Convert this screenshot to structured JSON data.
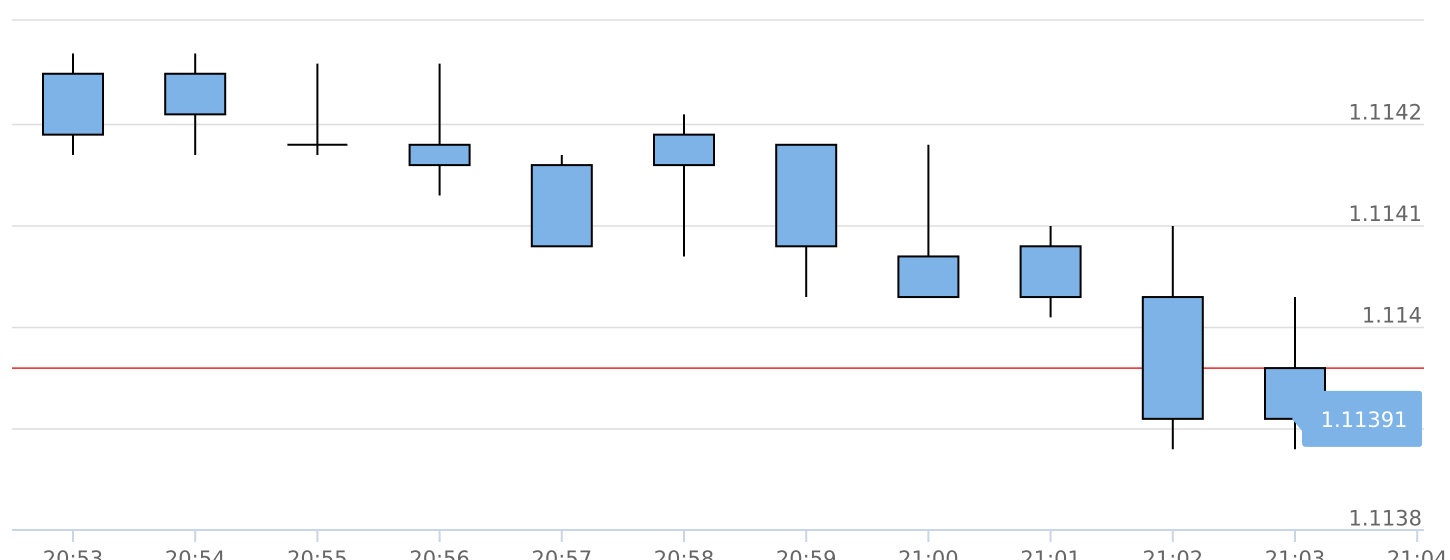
{
  "chart_data": {
    "type": "candlestick",
    "title": "",
    "xlabel": "",
    "ylabel": "",
    "x_ticks": [
      "20:53",
      "20:54",
      "20:55",
      "20:56",
      "20:57",
      "20:58",
      "20:59",
      "21:00",
      "21:01",
      "21:02",
      "21:03",
      "21:04"
    ],
    "y_ticks": [
      {
        "value": 1.1138,
        "label": "1.1138"
      },
      {
        "value": 1.114,
        "label": "1.114"
      },
      {
        "value": 1.1141,
        "label": "1.1141"
      },
      {
        "value": 1.1142,
        "label": "1.1142"
      }
    ],
    "y_range": [
      1.11378,
      1.11429
    ],
    "grid": true,
    "candles": [
      {
        "time": "20:53",
        "open": 1.11419,
        "high": 1.11427,
        "low": 1.11417,
        "close": 1.11425
      },
      {
        "time": "20:54",
        "open": 1.11421,
        "high": 1.11427,
        "low": 1.11417,
        "close": 1.11425
      },
      {
        "time": "20:55",
        "open": 1.11418,
        "high": 1.11426,
        "low": 1.11417,
        "close": 1.11418
      },
      {
        "time": "20:56",
        "open": 1.11416,
        "high": 1.11426,
        "low": 1.11413,
        "close": 1.11418
      },
      {
        "time": "20:57",
        "open": 1.11408,
        "high": 1.11417,
        "low": 1.11408,
        "close": 1.11416
      },
      {
        "time": "20:58",
        "open": 1.11416,
        "high": 1.11421,
        "low": 1.11407,
        "close": 1.11419
      },
      {
        "time": "20:59",
        "open": 1.11408,
        "high": 1.11418,
        "low": 1.11403,
        "close": 1.11418
      },
      {
        "time": "21:00",
        "open": 1.11403,
        "high": 1.11418,
        "low": 1.11403,
        "close": 1.11407
      },
      {
        "time": "21:01",
        "open": 1.11403,
        "high": 1.1141,
        "low": 1.11401,
        "close": 1.11408
      },
      {
        "time": "21:02",
        "open": 1.11391,
        "high": 1.1141,
        "low": 1.11388,
        "close": 1.11403
      },
      {
        "time": "21:03",
        "open": 1.11391,
        "high": 1.11403,
        "low": 1.11388,
        "close": 1.11396
      }
    ],
    "current_price": {
      "value": 1.11391,
      "label": "1.11391"
    },
    "reference_line": {
      "value": 1.11396,
      "color": "#e8262a"
    },
    "colors": {
      "filled_body": "#7eb3e8",
      "hollow_body": "#ffffff",
      "outline": "#000000",
      "grid": "#dddddd",
      "axis": "#c8d6e5",
      "price_tag": "#7eb3e8"
    }
  }
}
